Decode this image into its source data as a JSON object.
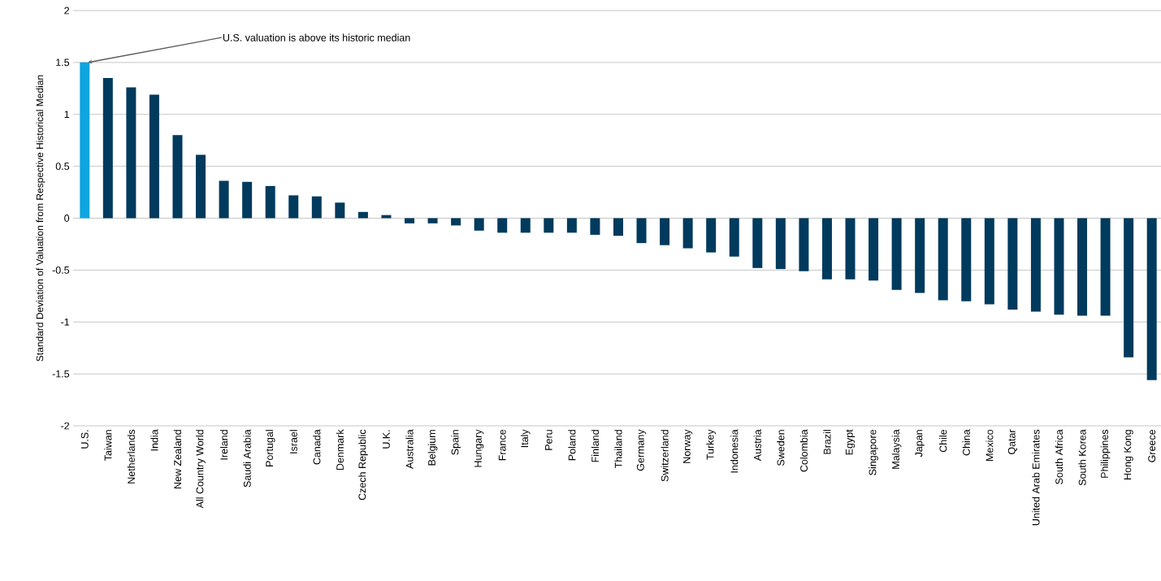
{
  "chart_data": {
    "type": "bar",
    "ylabel": "Standard Deviation of Valuation from Respective Historical Median",
    "categories": [
      "U.S.",
      "Taiwan",
      "Netherlands",
      "India",
      "New Zealand",
      "All Country World",
      "Ireland",
      "Saudi Arabia",
      "Portugal",
      "Israel",
      "Canada",
      "Denmark",
      "Czech Republic",
      "U.K.",
      "Australia",
      "Belgium",
      "Spain",
      "Hungary",
      "France",
      "Italy",
      "Peru",
      "Poland",
      "Finland",
      "Thailand",
      "Germany",
      "Switzerland",
      "Norway",
      "Turkey",
      "Indonesia",
      "Austria",
      "Sweden",
      "Colombia",
      "Brazil",
      "Egypt",
      "Singapore",
      "Malaysia",
      "Japan",
      "Chile",
      "China",
      "Mexico",
      "Qatar",
      "United Arab Emirates",
      "South Africa",
      "South Korea",
      "Philippines",
      "Hong Kong",
      "Greece"
    ],
    "values": [
      1.5,
      1.35,
      1.26,
      1.19,
      0.8,
      0.61,
      0.36,
      0.35,
      0.31,
      0.22,
      0.21,
      0.15,
      0.06,
      0.03,
      -0.05,
      -0.05,
      -0.07,
      -0.12,
      -0.14,
      -0.14,
      -0.14,
      -0.14,
      -0.16,
      -0.17,
      -0.24,
      -0.26,
      -0.29,
      -0.33,
      -0.37,
      -0.48,
      -0.49,
      -0.51,
      -0.59,
      -0.59,
      -0.6,
      -0.69,
      -0.72,
      -0.79,
      -0.8,
      -0.83,
      -0.88,
      -0.9,
      -0.93,
      -0.94,
      -0.94,
      -1.34,
      -1.56
    ],
    "colors": [
      "#0ea5e0",
      "#003a5d",
      "#003a5d",
      "#003a5d",
      "#003a5d",
      "#003a5d",
      "#003a5d",
      "#003a5d",
      "#003a5d",
      "#003a5d",
      "#003a5d",
      "#003a5d",
      "#003a5d",
      "#003a5d",
      "#003a5d",
      "#003a5d",
      "#003a5d",
      "#003a5d",
      "#003a5d",
      "#003a5d",
      "#003a5d",
      "#003a5d",
      "#003a5d",
      "#003a5d",
      "#003a5d",
      "#003a5d",
      "#003a5d",
      "#003a5d",
      "#003a5d",
      "#003a5d",
      "#003a5d",
      "#003a5d",
      "#003a5d",
      "#003a5d",
      "#003a5d",
      "#003a5d",
      "#003a5d",
      "#003a5d",
      "#003a5d",
      "#003a5d",
      "#003a5d",
      "#003a5d",
      "#003a5d",
      "#003a5d",
      "#003a5d",
      "#003a5d",
      "#003a5d"
    ],
    "ylim": [
      -2,
      2
    ],
    "yticks": [
      -2,
      -1.5,
      -1,
      -0.5,
      0,
      0.5,
      1,
      1.5,
      2
    ],
    "grid": "y",
    "annotations": [
      {
        "text": "U.S. valuation is above its historic median",
        "x": "U.S.",
        "y": 1.5
      }
    ]
  }
}
